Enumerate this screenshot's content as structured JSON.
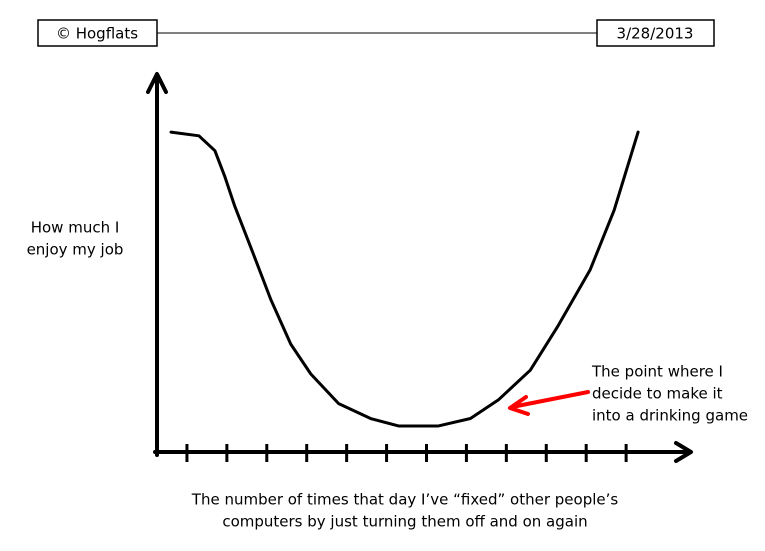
{
  "header": {
    "left": "© Hogflats",
    "right": "3/28/2013"
  },
  "chart_data": {
    "type": "line",
    "ylabel": [
      "How much I",
      "enjoy my job"
    ],
    "xlabel": [
      "The number of times that day I’ve “fixed” other people’s",
      "computers by just turning them off and on again"
    ],
    "annotation": [
      "The point where I",
      "decide to make it",
      "into a drinking game"
    ],
    "annotation_color": "#ff0000",
    "x": [
      0.6,
      1.3,
      1.7,
      1.95,
      2.2,
      2.6,
      3.1,
      3.6,
      4.1,
      4.8,
      5.6,
      6.3,
      7.3,
      8.1,
      8.8,
      9.6,
      10.3,
      11.1,
      11.7,
      12.3
    ],
    "series": [
      {
        "color": "#000000",
        "values": [
          8.6,
          8.5,
          8.1,
          7.4,
          6.6,
          5.5,
          4.1,
          2.9,
          2.1,
          1.3,
          0.9,
          0.7,
          0.7,
          0.9,
          1.4,
          2.2,
          3.4,
          4.9,
          6.5,
          8.6
        ]
      }
    ],
    "xlim": [
      0.25,
      13.6
    ],
    "ylim": [
      0,
      10
    ],
    "xticks": [
      1,
      2,
      3,
      4,
      5,
      6,
      7,
      8,
      9,
      10,
      11,
      12
    ]
  }
}
